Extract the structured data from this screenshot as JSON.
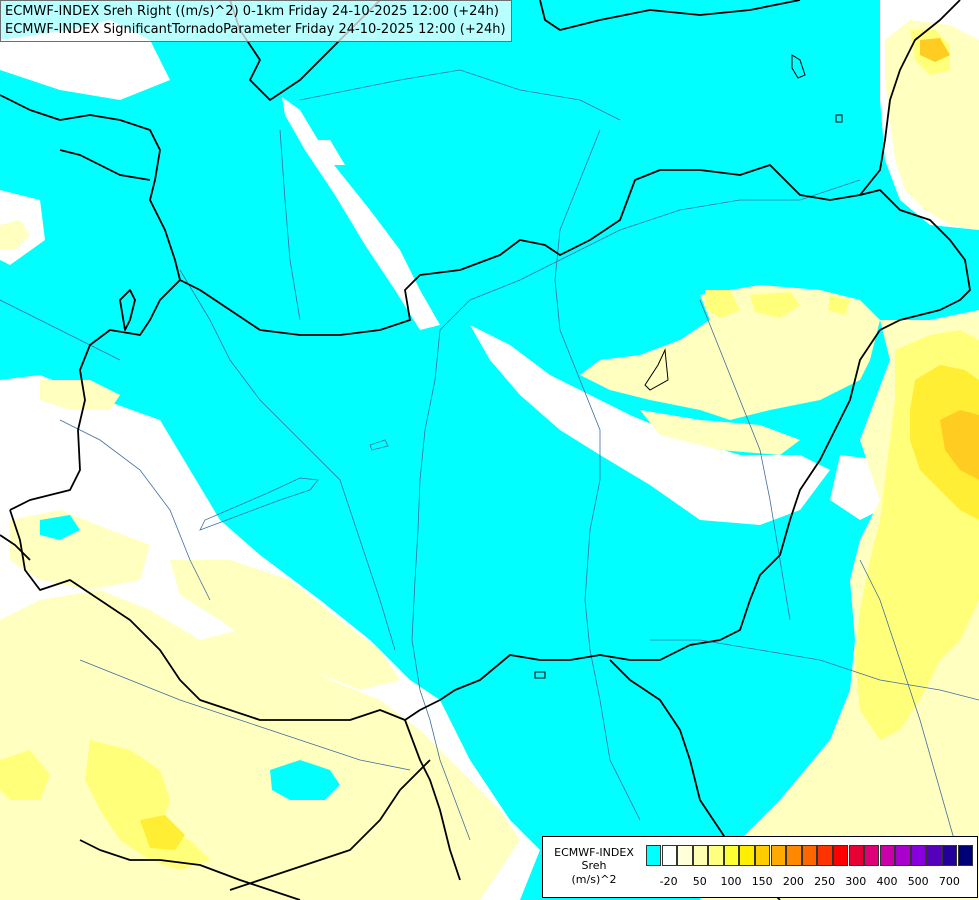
{
  "title": {
    "line1": "ECMWF-INDEX Sreh Right ((m/s)^2) 0-1km Friday 24-10-2025 12:00 (+24h)",
    "line2": "ECMWF-INDEX SignificantTornadoParameter Friday 24-10-2025 12:00 (+24h)"
  },
  "legend": {
    "product": "ECMWF-INDEX",
    "variable": "Sreh",
    "unit": "(m/s)^2",
    "colors": [
      "#00ffff",
      "#ffffff",
      "#ffffd9",
      "#ffffb3",
      "#ffff80",
      "#ffff33",
      "#ffee00",
      "#ffcc00",
      "#ffaa00",
      "#ff8800",
      "#ff6600",
      "#ff3300",
      "#ff0000",
      "#e60033",
      "#dd0077",
      "#cc00aa",
      "#aa00cc",
      "#8800dd",
      "#5500bb",
      "#220099",
      "#000077"
    ],
    "labels": [
      "-20",
      "50",
      "100",
      "150",
      "200",
      "250",
      "300",
      "400",
      "500",
      "700"
    ]
  },
  "map": {
    "field_colors": {
      "background": "#00ffff",
      "low": "#ffffff",
      "light_yellow": "#ffffc0",
      "yellow": "#ffff7a",
      "bright_yellow": "#ffee33",
      "orange": "#ffcc22"
    },
    "borders_color": "#000000",
    "rivers_color": "#3f6fa0"
  }
}
